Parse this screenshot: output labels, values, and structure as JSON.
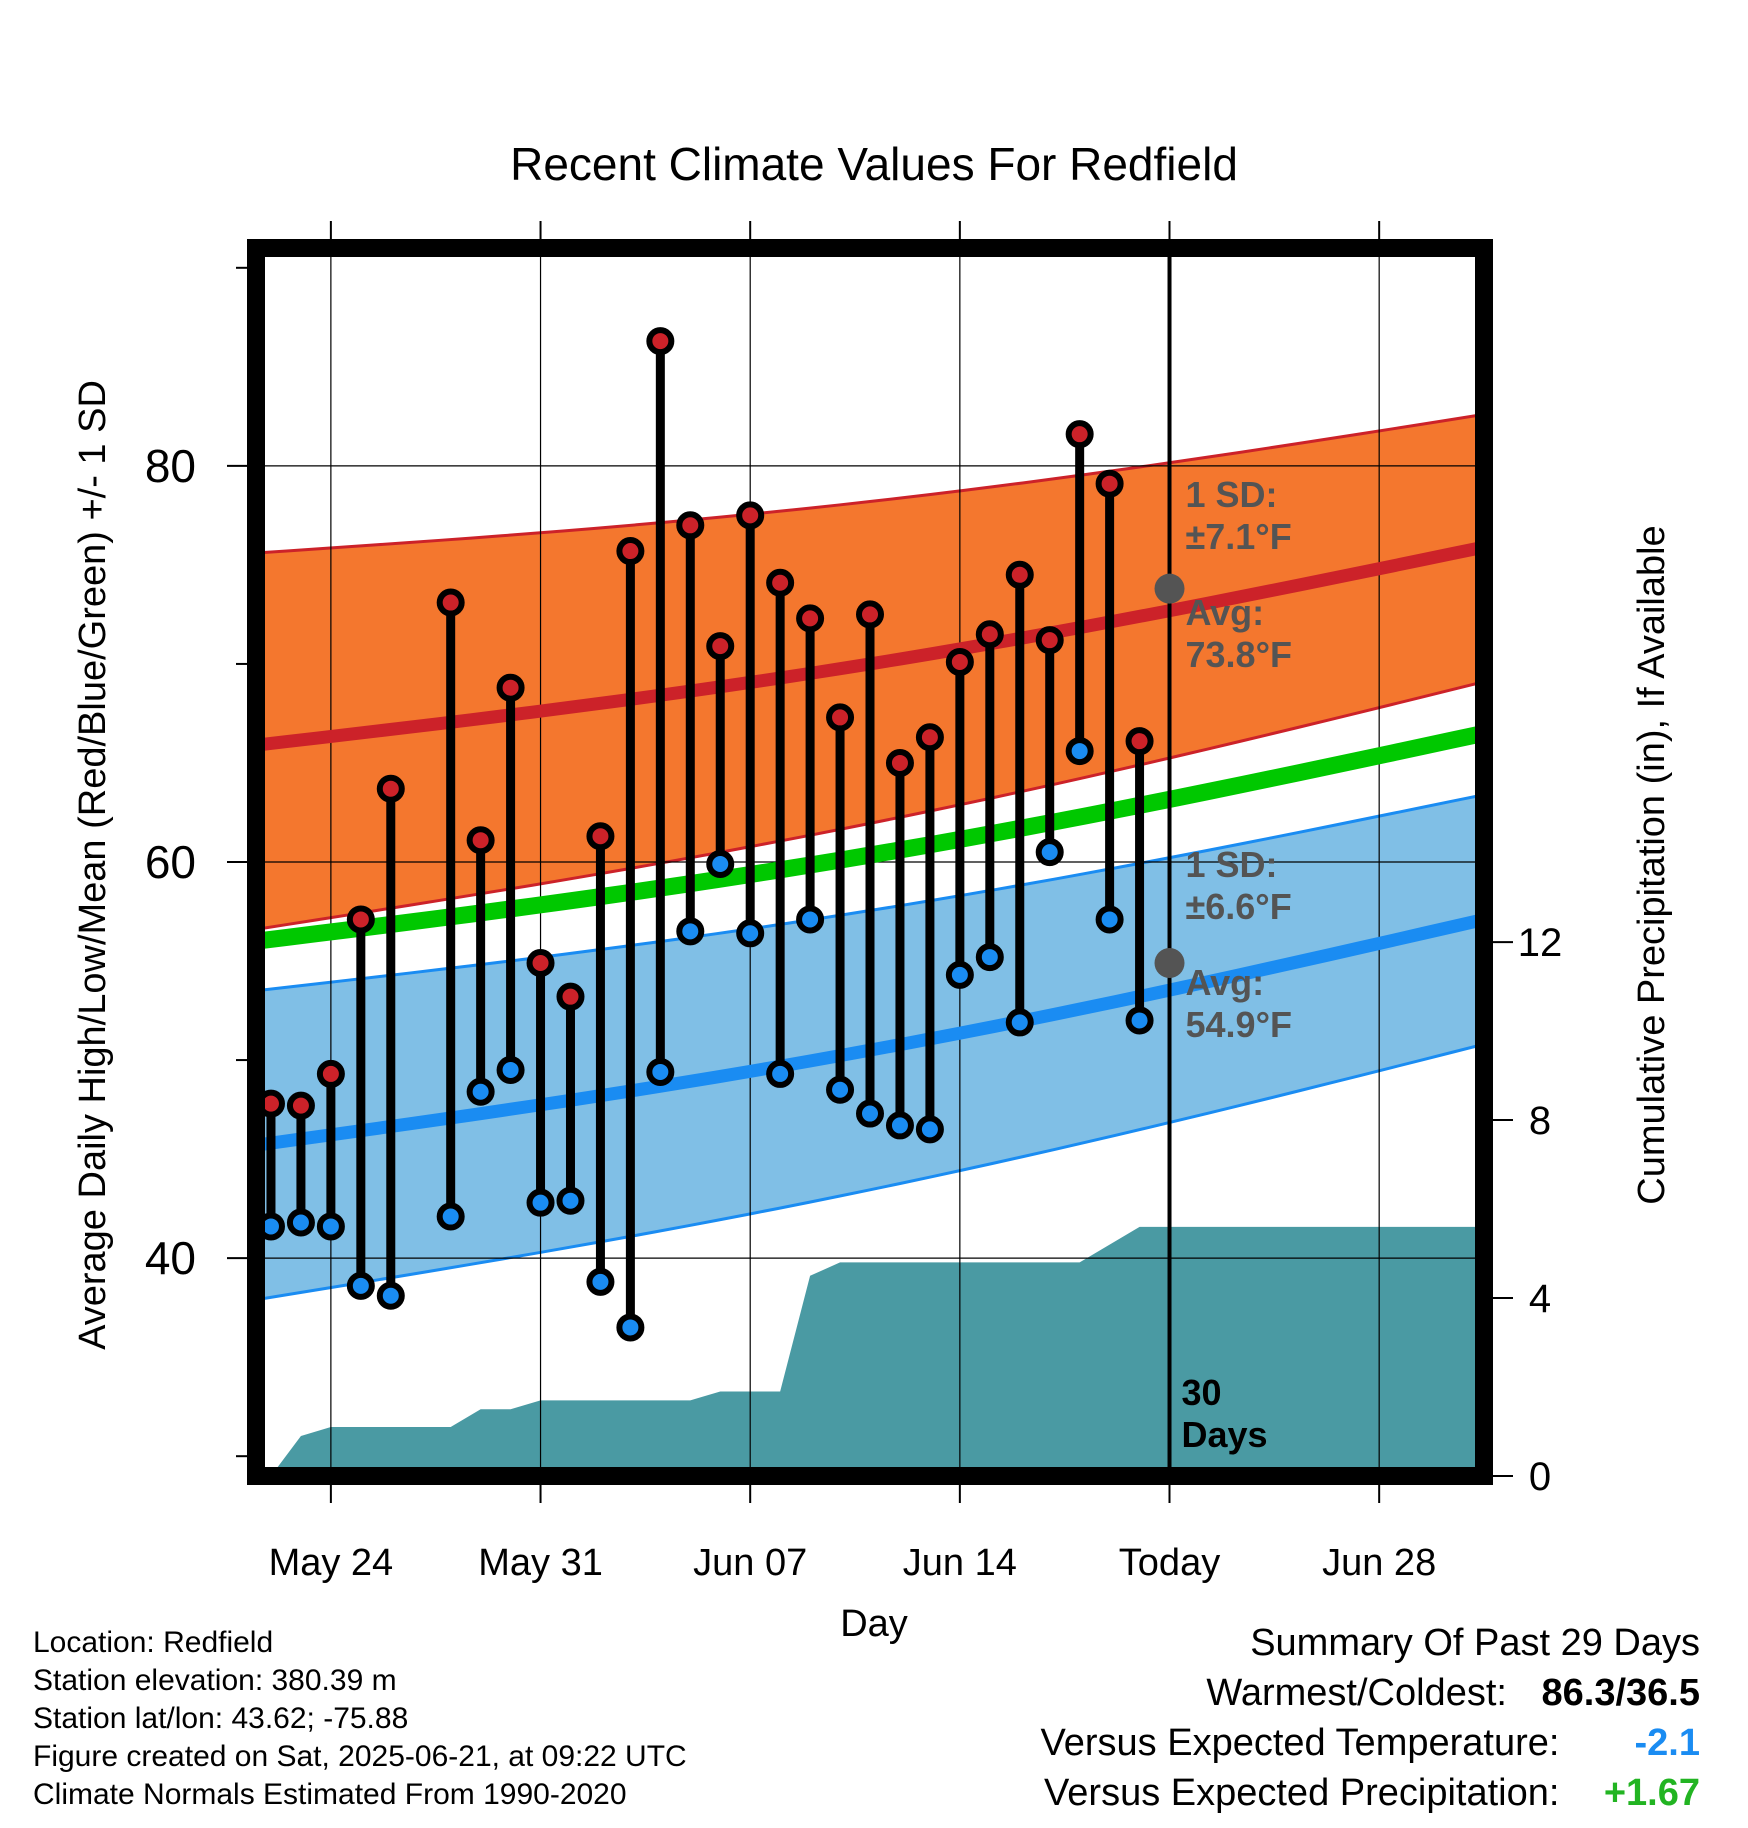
{
  "chart_data": {
    "type": "line",
    "title": "Recent Climate Values For Redfield",
    "xlabel": "Day",
    "ylabel": "Average Daily High/Low/Mean (Red/Blue/Green) +/- 1 SD",
    "y2label": "Cumulative Precipitation (in), If Available",
    "x_ticks": [
      {
        "day": 3,
        "label": "May 24"
      },
      {
        "day": 10,
        "label": "May 31"
      },
      {
        "day": 17,
        "label": "Jun 07"
      },
      {
        "day": 24,
        "label": "Jun 14"
      },
      {
        "day": 31,
        "label": "Today"
      },
      {
        "day": 38,
        "label": "Jun 28"
      }
    ],
    "xlim": [
      0.5,
      41.5
    ],
    "ylim": [
      29,
      91
    ],
    "y_ticks": [
      40,
      60,
      80
    ],
    "y_minor_ticks": [
      30,
      50,
      70,
      90
    ],
    "y2lim": [
      0,
      27.6
    ],
    "y2_ticks": [
      0,
      4,
      8,
      12
    ],
    "grid": true,
    "today_day": 31,
    "today_label": "30\nDays",
    "normals": {
      "days": [
        0.5,
        41.5
      ],
      "high_mean": [
        65.9,
        75.9
      ],
      "high_sd_upper": [
        75.6,
        82.6
      ],
      "high_sd_lower": [
        56.6,
        69.1
      ],
      "low_mean": [
        45.7,
        57.1
      ],
      "low_sd_upper": [
        53.5,
        63.4
      ],
      "low_sd_lower": [
        37.9,
        50.8
      ],
      "mean": [
        56.0,
        66.5
      ]
    },
    "annotations": {
      "high_sd": "1 SD:\n±7.1°F",
      "high_avg": "Avg:\n73.8°F",
      "high_avg_value": 73.8,
      "low_sd": "1 SD:\n±6.6°F",
      "low_avg": "Avg:\n54.9°F",
      "low_avg_value": 54.9
    },
    "series": [
      {
        "name": "High",
        "days": [
          1,
          2,
          3,
          4,
          5,
          7,
          8,
          9,
          10,
          11,
          12,
          13,
          14,
          15,
          16,
          17,
          18,
          19,
          20,
          21,
          22,
          23,
          24,
          25,
          26,
          27,
          28,
          29,
          30
        ],
        "values": [
          47.8,
          47.7,
          49.3,
          57.1,
          63.7,
          73.1,
          61.1,
          68.8,
          54.9,
          53.2,
          61.3,
          75.7,
          86.3,
          77.0,
          70.9,
          77.5,
          74.1,
          72.3,
          67.3,
          72.5,
          65.0,
          66.3,
          70.1,
          71.5,
          74.5,
          71.2,
          81.6,
          79.1,
          66.1
        ]
      },
      {
        "name": "Low",
        "days": [
          1,
          2,
          3,
          4,
          5,
          7,
          8,
          9,
          10,
          11,
          12,
          13,
          14,
          15,
          16,
          17,
          18,
          19,
          20,
          21,
          22,
          23,
          24,
          25,
          26,
          27,
          28,
          29,
          30
        ],
        "values": [
          41.6,
          41.8,
          41.6,
          38.6,
          38.1,
          42.1,
          48.4,
          49.5,
          42.8,
          42.9,
          38.8,
          36.5,
          49.4,
          56.5,
          59.9,
          56.4,
          49.3,
          57.1,
          48.5,
          47.3,
          46.7,
          46.5,
          54.3,
          55.2,
          51.9,
          60.5,
          65.6,
          57.1,
          52.0
        ]
      }
    ],
    "precip_cumulative": {
      "days": [
        1,
        2,
        3,
        6,
        7,
        8,
        9,
        10,
        13,
        14,
        15,
        16,
        17,
        18,
        19,
        20,
        23,
        24,
        27,
        28,
        29,
        30,
        41.5
      ],
      "values": [
        0.0,
        0.9,
        1.1,
        1.1,
        1.1,
        1.5,
        1.5,
        1.7,
        1.7,
        1.7,
        1.7,
        1.9,
        1.9,
        1.9,
        4.5,
        4.8,
        4.8,
        4.8,
        4.8,
        4.8,
        5.2,
        5.6,
        5.6
      ]
    },
    "colors": {
      "high": "#cc2229",
      "high_band": "#f4772e",
      "low": "#1a8cf2",
      "low_band": "#80bfe6",
      "mean": "#00c800",
      "precip": "#4a9aa3",
      "annotation": "#545454"
    }
  },
  "info": {
    "location": "Location: Redfield",
    "elevation": "Station elevation: 380.39 m",
    "latlon": "Station lat/lon: 43.62; -75.88",
    "created": "Figure created on Sat, 2025-06-21, at 09:22 UTC",
    "normals": "Climate Normals Estimated From 1990-2020"
  },
  "summary": {
    "title": "Summary Of Past 29 Days",
    "warm_cold_label": "Warmest/Coldest:",
    "warm_cold_value": "86.3/36.5",
    "temp_label": "Versus Expected Temperature:",
    "temp_value": "-2.1",
    "precip_label": "Versus Expected Precipitation:",
    "precip_value": "+1.67",
    "temp_color": "#1a8cf2",
    "precip_color": "#22b422"
  }
}
